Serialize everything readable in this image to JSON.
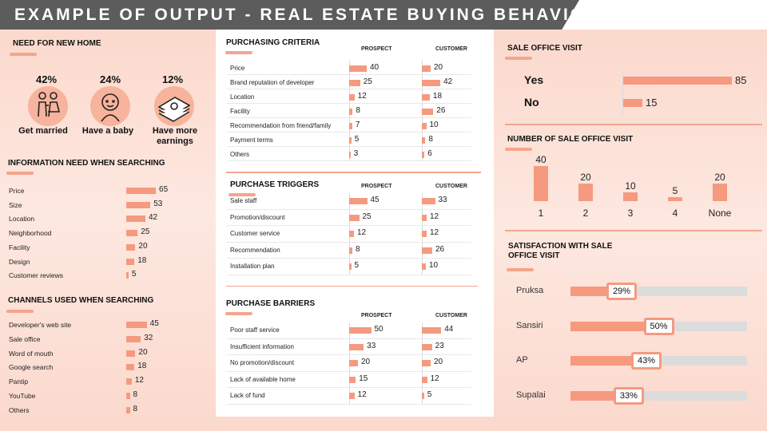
{
  "title": "EXAMPLE OF OUTPUT  - REAL ESTATE BUYING BEHAVIOR",
  "col_prospect": "PROSPECT",
  "col_customer": "CUSTOMER",
  "colors": {
    "accent": "#f59a7f",
    "track": "#dcdcdc",
    "title_bg": "#5c5c5c"
  },
  "need": {
    "heading": "NEED FOR NEW HOME",
    "items": [
      {
        "pct": "42%",
        "label": "Get married",
        "icon": "couple-icon"
      },
      {
        "pct": "24%",
        "label": "Have a baby",
        "icon": "baby-icon"
      },
      {
        "pct": "12%",
        "label": "Have more earnings",
        "icon": "money-stack-icon"
      }
    ]
  },
  "chart_data": [
    {
      "id": "info",
      "type": "bar",
      "title": "INFORMATION NEED WHEN SEARCHING",
      "categories": [
        "Price",
        "Size",
        "Location",
        "Neighborhood",
        "Facility",
        "Design",
        "Customer reviews"
      ],
      "values": [
        65,
        53,
        42,
        25,
        20,
        18,
        5
      ]
    },
    {
      "id": "channels",
      "type": "bar",
      "title": "CHANNELS USED WHEN SEARCHING",
      "categories": [
        "Developer's web site",
        "Sale office",
        "Word of mouth",
        "Google search",
        "Pantip",
        "YouTube",
        "Others"
      ],
      "values": [
        45,
        32,
        20,
        18,
        12,
        8,
        8
      ]
    },
    {
      "id": "criteria",
      "type": "bar",
      "title": "PURCHASING CRITERIA",
      "categories": [
        "Price",
        "Brand reputation of developer",
        "Location",
        "Facility",
        "Recommendation from friend/family",
        "Payment terms",
        "Others"
      ],
      "series": [
        {
          "name": "PROSPECT",
          "values": [
            40,
            25,
            12,
            8,
            7,
            5,
            3
          ]
        },
        {
          "name": "CUSTOMER",
          "values": [
            20,
            42,
            18,
            26,
            10,
            8,
            6
          ]
        }
      ]
    },
    {
      "id": "triggers",
      "type": "bar",
      "title": "PURCHASE TRIGGERS",
      "categories": [
        "Sale staff",
        "Promotion/discount",
        "Customer service",
        "Recommendation",
        "Installation plan"
      ],
      "series": [
        {
          "name": "PROSPECT",
          "values": [
            45,
            25,
            12,
            8,
            5
          ]
        },
        {
          "name": "CUSTOMER",
          "values": [
            33,
            12,
            12,
            26,
            10
          ]
        }
      ]
    },
    {
      "id": "barriers",
      "type": "bar",
      "title": "PURCHASE BARRIERS",
      "categories": [
        "Poor staff service",
        "Insufficient information",
        "No promotion/discount",
        "Lack of available home",
        "Lack of fund"
      ],
      "series": [
        {
          "name": "PROSPECT",
          "values": [
            50,
            33,
            20,
            15,
            12
          ]
        },
        {
          "name": "CUSTOMER",
          "values": [
            44,
            23,
            20,
            12,
            5
          ]
        }
      ]
    },
    {
      "id": "visit",
      "type": "bar",
      "title": "SALE OFFICE VISIT",
      "categories": [
        "Yes",
        "No"
      ],
      "values": [
        85,
        15
      ]
    },
    {
      "id": "visit_count",
      "type": "bar",
      "title": "NUMBER OF SALE OFFICE VISIT",
      "categories": [
        "1",
        "2",
        "3",
        "4",
        "None"
      ],
      "values": [
        40,
        20,
        10,
        5,
        20
      ]
    },
    {
      "id": "satisfaction",
      "type": "bar",
      "title": "SATISFACTION WITH SALE OFFICE VISIT",
      "categories": [
        "Pruksa",
        "Sansiri",
        "AP",
        "Supalai"
      ],
      "values": [
        29,
        50,
        43,
        33
      ],
      "value_labels": [
        "29%",
        "50%",
        "43%",
        "33%"
      ],
      "ylim": [
        0,
        100
      ]
    }
  ]
}
